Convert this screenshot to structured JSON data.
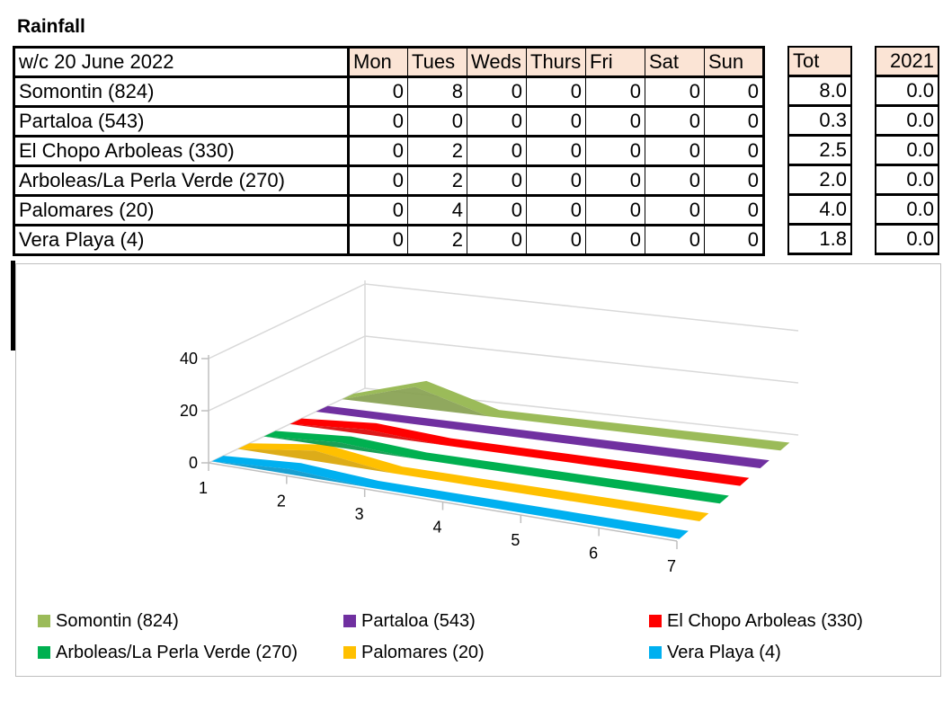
{
  "title": "Rainfall",
  "table": {
    "week_label": "w/c 20 June 2022",
    "days": [
      "Mon",
      "Tues",
      "Weds",
      "Thurs",
      "Fri",
      "Sat",
      "Sun"
    ],
    "tot_label": "Tot",
    "prev_year_label": "2021",
    "rows": [
      {
        "name": "Somontin (824)",
        "values": [
          "0",
          "8",
          "0",
          "0",
          "0",
          "0",
          "0"
        ],
        "tot": "8.0",
        "prev": "0.0"
      },
      {
        "name": "Partaloa (543)",
        "values": [
          "0",
          "0",
          "0",
          "0",
          "0",
          "0",
          "0"
        ],
        "tot": "0.3",
        "prev": "0.0"
      },
      {
        "name": "El Chopo Arboleas (330)",
        "values": [
          "0",
          "2",
          "0",
          "0",
          "0",
          "0",
          "0"
        ],
        "tot": "2.5",
        "prev": "0.0"
      },
      {
        "name": "Arboleas/La Perla Verde (270)",
        "values": [
          "0",
          "2",
          "0",
          "0",
          "0",
          "0",
          "0"
        ],
        "tot": "2.0",
        "prev": "0.0"
      },
      {
        "name": "Palomares (20)",
        "values": [
          "0",
          "4",
          "0",
          "0",
          "0",
          "0",
          "0"
        ],
        "tot": "4.0",
        "prev": "0.0"
      },
      {
        "name": "Vera Playa (4)",
        "values": [
          "0",
          "2",
          "0",
          "0",
          "0",
          "0",
          "0"
        ],
        "tot": "1.8",
        "prev": "0.0"
      }
    ]
  },
  "chart_data": {
    "type": "area",
    "categories": [
      "1",
      "2",
      "3",
      "4",
      "5",
      "6",
      "7"
    ],
    "y_ticks": [
      "0",
      "20",
      "40"
    ],
    "ylim": [
      0,
      40
    ],
    "grid": true,
    "legend_position": "bottom",
    "series": [
      {
        "name": "Somontin (824)",
        "color": "#9bbb59",
        "values": [
          0,
          8,
          0,
          0,
          0,
          0,
          0
        ]
      },
      {
        "name": "Partaloa (543)",
        "color": "#7030a0",
        "values": [
          0,
          0,
          0,
          0,
          0,
          0,
          0
        ]
      },
      {
        "name": "El Chopo Arboleas (330)",
        "color": "#ff0000",
        "values": [
          0,
          2,
          0,
          0,
          0,
          0,
          0
        ]
      },
      {
        "name": "Arboleas/La Perla Verde (270)",
        "color": "#00b050",
        "values": [
          0,
          2,
          0,
          0,
          0,
          0,
          0
        ]
      },
      {
        "name": "Palomares (20)",
        "color": "#ffc000",
        "values": [
          0,
          4,
          0,
          0,
          0,
          0,
          0
        ]
      },
      {
        "name": "Vera Playa (4)",
        "color": "#00b0f0",
        "values": [
          0,
          2,
          0,
          0,
          0,
          0,
          0
        ]
      }
    ]
  }
}
